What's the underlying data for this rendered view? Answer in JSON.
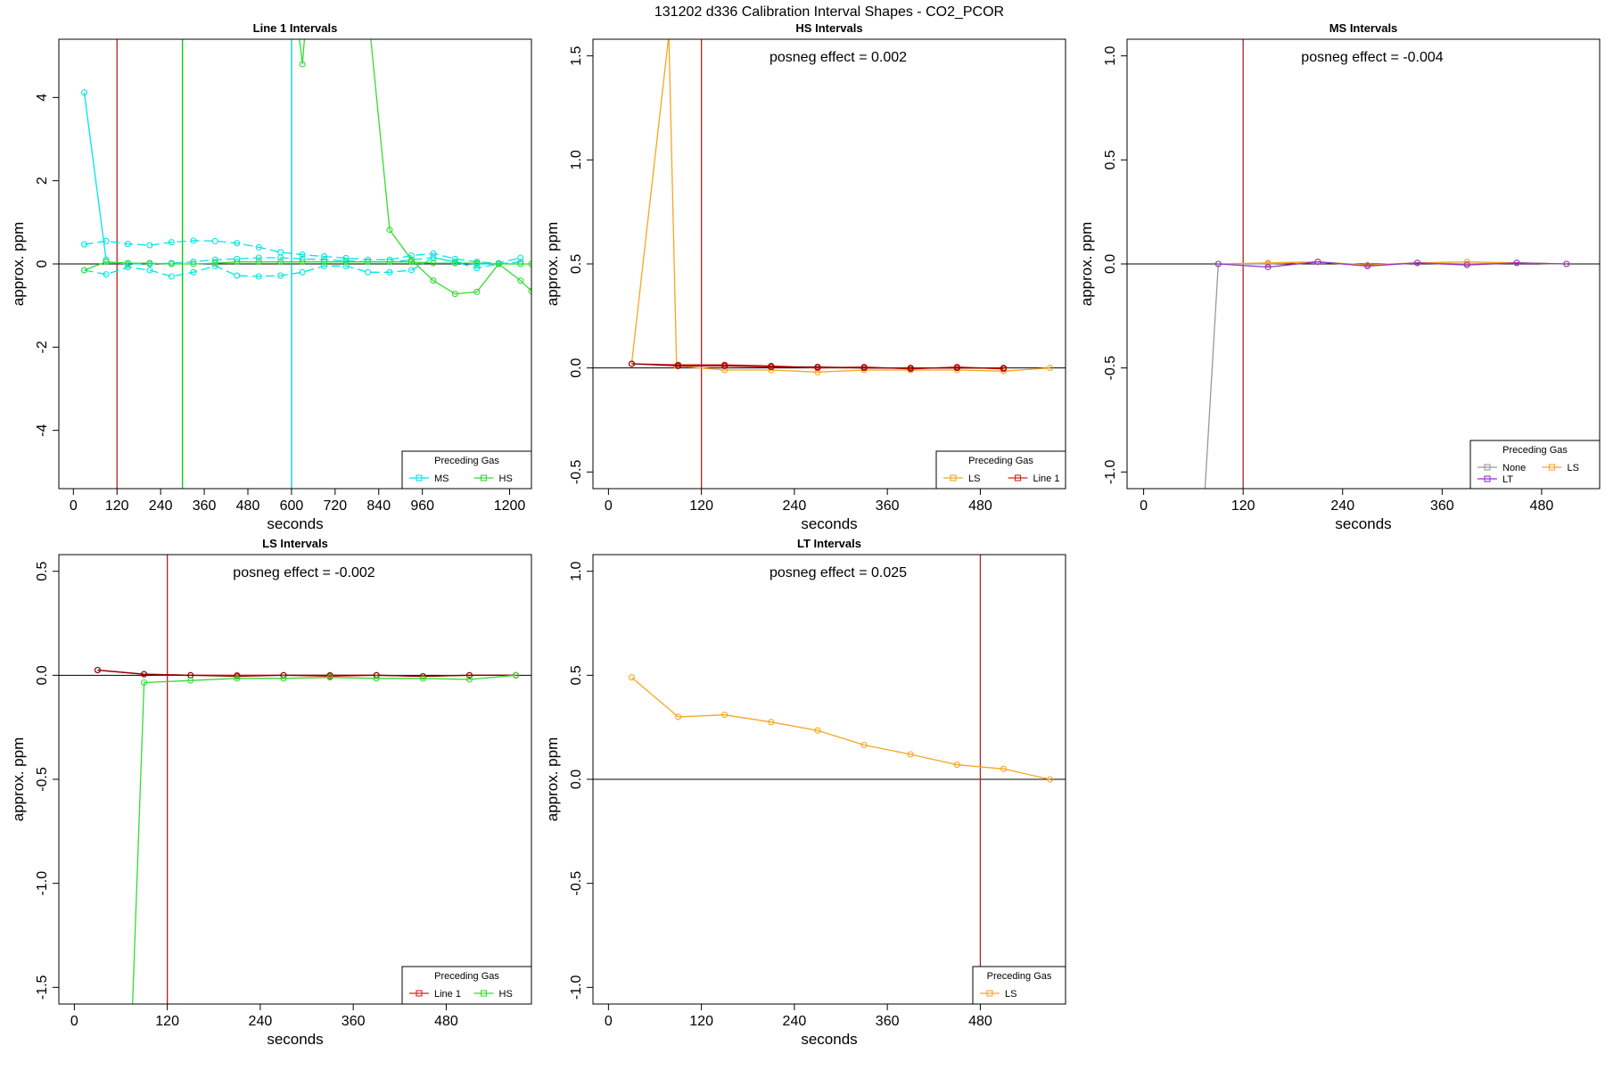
{
  "figure_title": "131202  d336   Calibration Interval Shapes - CO2_PCOR",
  "chart_data": [
    {
      "type": "line",
      "title": "Line 1 Intervals",
      "xlabel": "seconds",
      "ylabel": "approx. ppm",
      "xlim": [
        -40,
        1260
      ],
      "ylim": [
        -5.4,
        5.4
      ],
      "xticks": [
        0,
        120,
        240,
        360,
        480,
        600,
        720,
        840,
        960,
        1200
      ],
      "yticks": [
        -4,
        -2,
        0,
        2,
        4
      ],
      "grid": false,
      "vlines": [
        {
          "x": 120,
          "color": "#b22222"
        },
        {
          "x": 300,
          "color": "#00cc00"
        },
        {
          "x": 600,
          "color": "#00cccc"
        }
      ],
      "legend": {
        "title": "Preceding Gas",
        "position": "bottom-right",
        "entries": [
          "MS",
          "HS"
        ]
      },
      "series": [
        {
          "name": "MS",
          "color": "#00e5e5",
          "dashed": false,
          "x": [
            30,
            90
          ],
          "y": [
            4.12,
            0.1
          ]
        },
        {
          "name": "MS",
          "color": "#00e5e5",
          "dashed": true,
          "x": [
            30,
            90,
            150,
            210,
            270,
            330,
            390,
            450,
            510,
            570,
            630,
            690,
            750,
            810,
            870,
            930,
            990,
            1050,
            1110,
            1170,
            1230
          ],
          "y": [
            0.47,
            0.55,
            0.48,
            0.45,
            0.52,
            0.56,
            0.55,
            0.5,
            0.4,
            0.28,
            0.22,
            0.18,
            0.14,
            0.1,
            0.1,
            0.2,
            0.25,
            0.12,
            0.05,
            0.02,
            0.15
          ]
        },
        {
          "name": "MS",
          "color": "#00e5e5",
          "dashed": true,
          "x": [
            30,
            90,
            150,
            210,
            270,
            330,
            390,
            450,
            510,
            570,
            630,
            690,
            750,
            810,
            870,
            930,
            990,
            1050,
            1110,
            1170,
            1230
          ],
          "y": [
            -0.15,
            -0.25,
            -0.08,
            -0.15,
            -0.3,
            -0.2,
            -0.05,
            -0.28,
            -0.3,
            -0.28,
            -0.2,
            -0.05,
            -0.05,
            -0.2,
            -0.2,
            -0.15,
            0.15,
            0.05,
            -0.1,
            0.0,
            0.05
          ]
        },
        {
          "name": "MS",
          "color": "#00e5e5",
          "dashed": true,
          "x": [
            90,
            150,
            210,
            270,
            330,
            390,
            450,
            510,
            570,
            630,
            690,
            750,
            810,
            870,
            930,
            990,
            1050,
            1110,
            1170,
            1230
          ],
          "y": [
            0.05,
            0.0,
            0.0,
            0.02,
            0.05,
            0.1,
            0.12,
            0.15,
            0.15,
            0.12,
            0.1,
            0.08,
            0.05,
            0.05,
            0.1,
            0.15,
            0.05,
            0.0,
            0.0,
            0.0
          ]
        },
        {
          "name": "HS",
          "color": "#33dd33",
          "dashed": false,
          "x": [
            30,
            90,
            150,
            210,
            270,
            330,
            390,
            450,
            510,
            570,
            630,
            690,
            750,
            810,
            870,
            930,
            990,
            1050,
            1110,
            1170,
            1230,
            1260
          ],
          "y": [
            -0.15,
            0.05,
            0.02,
            0.02,
            0.0,
            0.0,
            0.02,
            0.05,
            0.05,
            0.05,
            0.05,
            0.05,
            0.05,
            0.05,
            0.05,
            0.05,
            0.02,
            0.02,
            0.02,
            0.0,
            0.0,
            0.0
          ]
        },
        {
          "name": "HS",
          "color": "#33dd33",
          "dashed": false,
          "x": [
            600,
            630,
            650,
            800,
            870,
            930,
            990,
            1050,
            1110,
            1170,
            1230,
            1260
          ],
          "y": [
            7.0,
            4.8,
            7.0,
            7.0,
            0.82,
            0.1,
            -0.4,
            -0.72,
            -0.67,
            0.0,
            -0.4,
            -0.65
          ]
        }
      ]
    },
    {
      "type": "line",
      "title": "HS Intervals",
      "xlabel": "seconds",
      "ylabel": "approx. ppm",
      "annotation": "posneg effect = 0.002",
      "xlim": [
        -20,
        590
      ],
      "ylim": [
        -0.58,
        1.58
      ],
      "xticks": [
        0,
        120,
        240,
        360,
        480
      ],
      "yticks": [
        -0.5,
        0.0,
        0.5,
        1.0,
        1.5
      ],
      "grid": false,
      "vlines": [
        {
          "x": 120,
          "color": "#b22222"
        }
      ],
      "legend": {
        "title": "Preceding Gas",
        "position": "bottom-right",
        "entries": [
          "LS",
          "Line 1"
        ]
      },
      "series": [
        {
          "name": "LS",
          "color": "#f5a623",
          "dashed": false,
          "x": [
            30,
            78,
            88,
            150,
            210,
            270,
            330,
            390,
            450,
            510,
            570
          ],
          "y": [
            0.02,
            1.6,
            0.01,
            -0.01,
            -0.01,
            -0.02,
            -0.01,
            -0.01,
            -0.01,
            -0.015,
            0.0
          ]
        },
        {
          "name": "Line 1",
          "color": "#dd2222",
          "dashed": false,
          "x": [
            30,
            90,
            150,
            210,
            270,
            330,
            390,
            450,
            510
          ],
          "y": [
            0.02,
            0.015,
            0.015,
            0.01,
            0.0,
            0.005,
            -0.005,
            0.005,
            -0.005
          ]
        },
        {
          "name": "Line 1",
          "color": "#8b0000",
          "dashed": false,
          "x": [
            30,
            90,
            150,
            210,
            270,
            330,
            390,
            450,
            510
          ],
          "y": [
            0.02,
            0.01,
            0.01,
            0.005,
            0.005,
            0.0,
            0.0,
            0.0,
            0.0
          ]
        }
      ]
    },
    {
      "type": "line",
      "title": "MS Intervals",
      "xlabel": "seconds",
      "ylabel": "approx. ppm",
      "annotation": "posneg effect = -0.004",
      "xlim": [
        -20,
        550
      ],
      "ylim": [
        -1.08,
        1.08
      ],
      "xticks": [
        0,
        120,
        240,
        360,
        480
      ],
      "yticks": [
        -1.0,
        -0.5,
        0.0,
        0.5,
        1.0
      ],
      "grid": false,
      "vlines": [
        {
          "x": 120,
          "color": "#b22222"
        }
      ],
      "legend": {
        "title": "Preceding Gas",
        "position": "bottom-right",
        "entries": [
          "None",
          "LS",
          "LT"
        ]
      },
      "series": [
        {
          "name": "None",
          "color": "#999999",
          "dashed": false,
          "x": [
            73,
            90,
            150,
            210,
            270,
            330,
            390,
            450,
            510
          ],
          "y": [
            -1.15,
            0.0,
            0.0,
            0.01,
            -0.01,
            0.005,
            0.0,
            0.005,
            0.0
          ]
        },
        {
          "name": "LS",
          "color": "#f5a623",
          "dashed": false,
          "x": [
            90,
            150,
            210,
            270,
            330,
            390,
            450,
            510
          ],
          "y": [
            0.0,
            0.005,
            0.01,
            -0.005,
            0.005,
            0.01,
            0.005,
            0.0
          ]
        },
        {
          "name": "LT",
          "color": "#9933cc",
          "dashed": false,
          "x": [
            90,
            150,
            210,
            270,
            330,
            390,
            450,
            510
          ],
          "y": [
            0.0,
            -0.015,
            0.01,
            -0.01,
            0.005,
            -0.005,
            0.005,
            0.0
          ]
        }
      ]
    },
    {
      "type": "line",
      "title": "LS Intervals",
      "xlabel": "seconds",
      "ylabel": "approx. ppm",
      "annotation": "posneg effect = -0.002",
      "xlim": [
        -20,
        590
      ],
      "ylim": [
        -1.58,
        0.58
      ],
      "xticks": [
        0,
        120,
        240,
        360,
        480
      ],
      "yticks": [
        -1.5,
        -1.0,
        -0.5,
        0.0,
        0.5
      ],
      "grid": false,
      "vlines": [
        {
          "x": 120,
          "color": "#b22222"
        }
      ],
      "legend": {
        "title": "Preceding Gas",
        "position": "bottom-right",
        "entries": [
          "Line 1",
          "HS"
        ]
      },
      "series": [
        {
          "name": "Line 1",
          "color": "#dd2222",
          "dashed": false,
          "x": [
            30,
            90,
            150,
            210,
            270,
            330,
            390,
            450,
            510,
            570
          ],
          "y": [
            0.025,
            0.005,
            0.0,
            0.0,
            0.0,
            -0.005,
            0.0,
            -0.005,
            0.0,
            0.0
          ]
        },
        {
          "name": "Line 1",
          "color": "#8b0000",
          "dashed": false,
          "x": [
            30,
            90,
            150,
            210,
            270,
            330,
            390,
            450,
            510,
            570
          ],
          "y": [
            0.025,
            0.005,
            0.0,
            -0.005,
            0.0,
            0.0,
            0.0,
            -0.005,
            0.0,
            0.0
          ]
        },
        {
          "name": "HS",
          "color": "#33dd33",
          "dashed": false,
          "x": [
            75,
            90,
            150,
            210,
            270,
            330,
            390,
            450,
            510,
            570
          ],
          "y": [
            -1.6,
            -0.035,
            -0.025,
            -0.015,
            -0.015,
            -0.01,
            -0.015,
            -0.015,
            -0.02,
            0.0
          ]
        }
      ]
    },
    {
      "type": "line",
      "title": "LT Intervals",
      "xlabel": "seconds",
      "ylabel": "approx. ppm",
      "annotation": "posneg effect = 0.025",
      "xlim": [
        -20,
        590
      ],
      "ylim": [
        -1.08,
        1.08
      ],
      "xticks": [
        0,
        120,
        240,
        360,
        480
      ],
      "yticks": [
        -1.0,
        -0.5,
        0.0,
        0.5,
        1.0
      ],
      "grid": false,
      "vlines": [
        {
          "x": 480,
          "color": "#b22222"
        }
      ],
      "legend": {
        "title": "Preceding Gas",
        "position": "bottom-right",
        "entries": [
          "LS"
        ]
      },
      "series": [
        {
          "name": "LS",
          "color": "#f5a623",
          "dashed": false,
          "x": [
            30,
            90,
            150,
            210,
            270,
            330,
            390,
            450,
            510,
            570
          ],
          "y": [
            0.49,
            0.3,
            0.31,
            0.275,
            0.235,
            0.165,
            0.12,
            0.07,
            0.05,
            0.0
          ]
        }
      ]
    }
  ],
  "legend_colors": {
    "MS": "#00e5e5",
    "HS": "#33dd33",
    "LS": "#f5a623",
    "Line 1": "#dd2222",
    "None": "#999999",
    "LT": "#9933cc"
  }
}
